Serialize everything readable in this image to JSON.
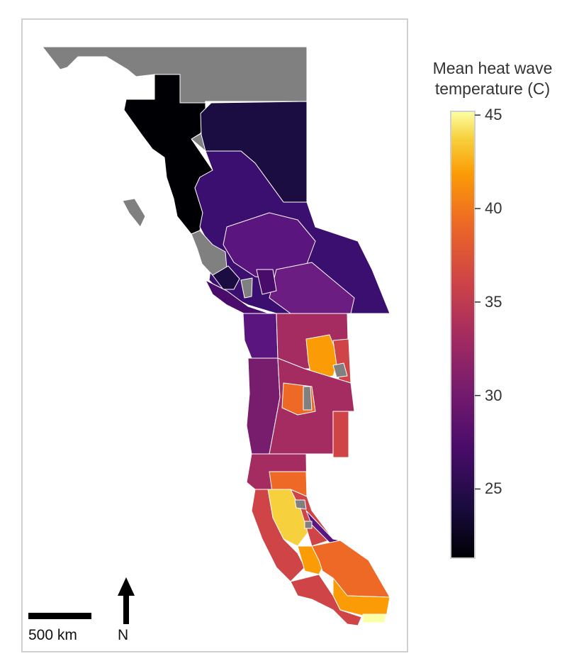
{
  "map": {
    "regions_palette": {
      "no_data": "#808080",
      "boundary": "#ffffff",
      "colormap": "inferno"
    },
    "scale_bar_label": "500 km",
    "north_label": "N"
  },
  "colorbar": {
    "title_line1": "Mean heat wave",
    "title_line2": "temperature (C)",
    "range": [
      21.3,
      45.2
    ],
    "ticks": [
      "45",
      "40",
      "35",
      "30",
      "25"
    ],
    "tick_values": [
      45,
      40,
      35,
      30,
      25
    ]
  }
}
